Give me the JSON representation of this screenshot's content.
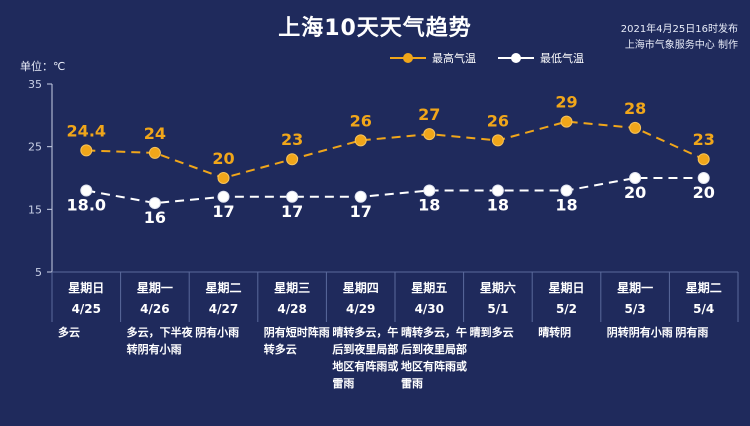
{
  "title": "上海10天天气趋势",
  "publish_line1": "2021年4月25日16时发布",
  "publish_line2": "上海市气象服务中心 制作",
  "unit_label": "单位：℃",
  "colors": {
    "background": "#1f2a5c",
    "high": "#f0a61a",
    "low": "#ffffff",
    "axis": "#c9d0e6",
    "grid_table": "#5b6a9c"
  },
  "chart_data": {
    "type": "line",
    "ylim": [
      5,
      35
    ],
    "yticks": [
      5,
      15,
      25,
      35
    ],
    "legend_placement": "top-center",
    "categories": [
      "4/25",
      "4/26",
      "4/27",
      "4/28",
      "4/29",
      "4/30",
      "5/1",
      "5/2",
      "5/3",
      "5/4"
    ],
    "weekdays": [
      "星期日",
      "星期一",
      "星期二",
      "星期三",
      "星期四",
      "星期五",
      "星期六",
      "星期日",
      "星期一",
      "星期二"
    ],
    "weather": [
      "多云",
      "多云，下半夜转阴有小雨",
      "阴有小雨",
      "阴有短时阵雨转多云",
      "晴转多云，午后到夜里局部地区有阵雨或雷雨",
      "晴转多云，午后到夜里局部地区有阵雨或雷雨",
      "晴到多云",
      "晴转阴",
      "阴转阴有小雨",
      "阴有雨"
    ],
    "series": [
      {
        "name": "最高气温",
        "values": [
          24.4,
          24,
          20,
          23,
          26,
          27,
          26,
          29,
          28,
          23
        ],
        "labels": [
          "24.4",
          "24",
          "20",
          "23",
          "26",
          "27",
          "26",
          "29",
          "28",
          "23"
        ]
      },
      {
        "name": "最低气温",
        "values": [
          18.0,
          16,
          17,
          17,
          17,
          18,
          18,
          18,
          20,
          20
        ],
        "labels": [
          "18.0",
          "16",
          "17",
          "17",
          "17",
          "18",
          "18",
          "18",
          "20",
          "20"
        ]
      }
    ]
  }
}
